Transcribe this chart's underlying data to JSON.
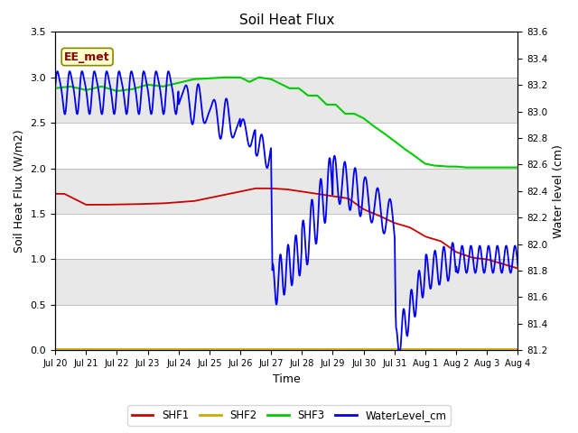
{
  "title": "Soil Heat Flux",
  "ylabel_left": "Soil Heat Flux (W/m2)",
  "ylabel_right": "Water level (cm)",
  "xlabel": "Time",
  "annotation": "EE_met",
  "ylim_left": [
    0.0,
    3.5
  ],
  "ylim_right": [
    81.2,
    83.6
  ],
  "plot_bg_color": "#e8e8e8",
  "shf1_color": "#cc0000",
  "shf2_color": "#ccaa00",
  "shf3_color": "#00cc00",
  "wl_color": "#0000ee",
  "legend_labels": [
    "SHF1",
    "SHF2",
    "SHF3",
    "WaterLevel_cm"
  ],
  "x_tick_labels": [
    "Jul 20",
    "Jul 21",
    "Jul 22",
    "Jul 23",
    "Jul 24",
    "Jul 25",
    "Jul 26",
    "Jul 27",
    "Jul 28",
    "Jul 29",
    "Jul 30",
    "Jul 31",
    "Aug 1",
    "Aug 2",
    "Aug 3",
    "Aug 4"
  ],
  "grid_colors": [
    "#d8d8d8",
    "#e8e8e8"
  ]
}
